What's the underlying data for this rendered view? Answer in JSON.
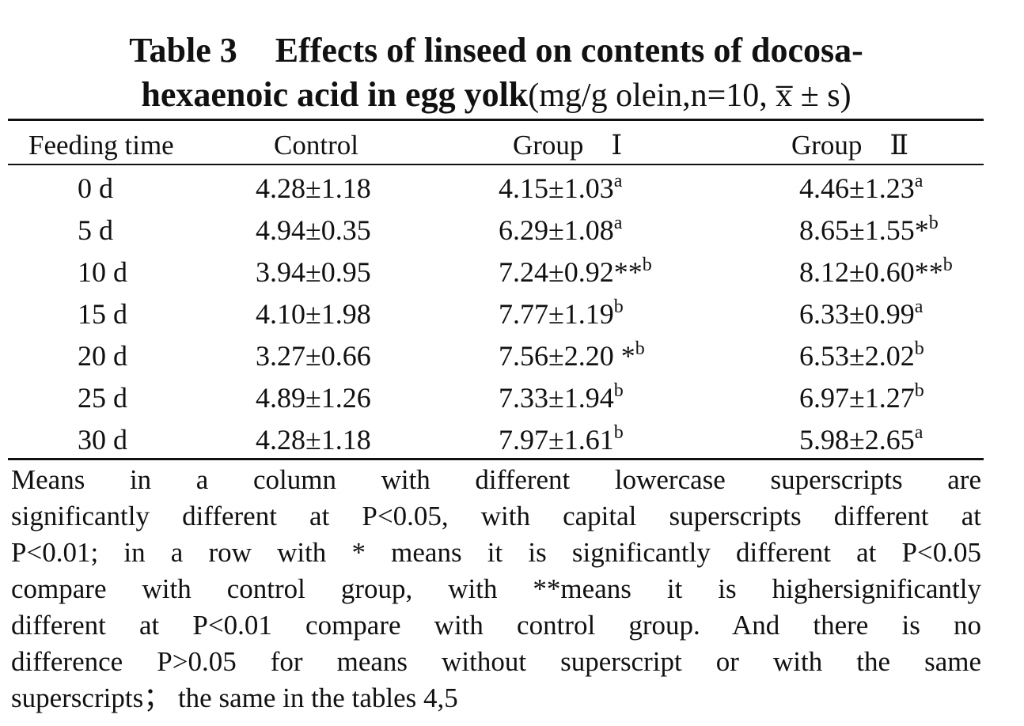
{
  "title": {
    "label": "Table 3",
    "line1": "Effects of linseed on contents of docosa-",
    "line2_bold": "hexaenoic acid in egg yolk",
    "line2_units": "(mg/g olein,n=10, x̅ ± s)"
  },
  "table": {
    "headers": [
      "Feeding time",
      "Control",
      "Group　Ⅰ",
      "Group　Ⅱ"
    ],
    "rows": [
      {
        "time": "0 d",
        "control": "4.28±1.18",
        "g1": "4.15±1.03",
        "g1_sup": "a",
        "g2": "4.46±1.23",
        "g2_sup": "a"
      },
      {
        "time": "5 d",
        "control": "4.94±0.35",
        "g1": "6.29±1.08",
        "g1_sup": "a",
        "g2": "8.65±1.55*",
        "g2_sup": "b"
      },
      {
        "time": "10 d",
        "control": "3.94±0.95",
        "g1": "7.24±0.92**",
        "g1_sup": "b",
        "g2": "8.12±0.60**",
        "g2_sup": "b"
      },
      {
        "time": "15 d",
        "control": "4.10±1.98",
        "g1": "7.77±1.19",
        "g1_sup": "b",
        "g2": "6.33±0.99",
        "g2_sup": "a"
      },
      {
        "time": "20 d",
        "control": "3.27±0.66",
        "g1": "7.56±2.20 *",
        "g1_sup": "b",
        "g2": "6.53±2.02",
        "g2_sup": "b"
      },
      {
        "time": "25 d",
        "control": "4.89±1.26",
        "g1": "7.33±1.94",
        "g1_sup": "b",
        "g2": "6.97±1.27",
        "g2_sup": "b"
      },
      {
        "time": "30 d",
        "control": "4.28±1.18",
        "g1": "7.97±1.61",
        "g1_sup": "b",
        "g2": "5.98±2.65",
        "g2_sup": "a"
      }
    ]
  },
  "notes": [
    "Means in a column with different lowercase superscripts are",
    "significantly different at P<0.05, with capital superscripts different at",
    "P<0.01; in a row with * means it is significantly different at P<0.05",
    "compare with control group, with **means it is highersignificantly",
    "different at P<0.01 compare with control group. And there is no",
    "difference P>0.05 for means without superscript or with the same",
    "superscripts； the same in the tables 4,5"
  ]
}
